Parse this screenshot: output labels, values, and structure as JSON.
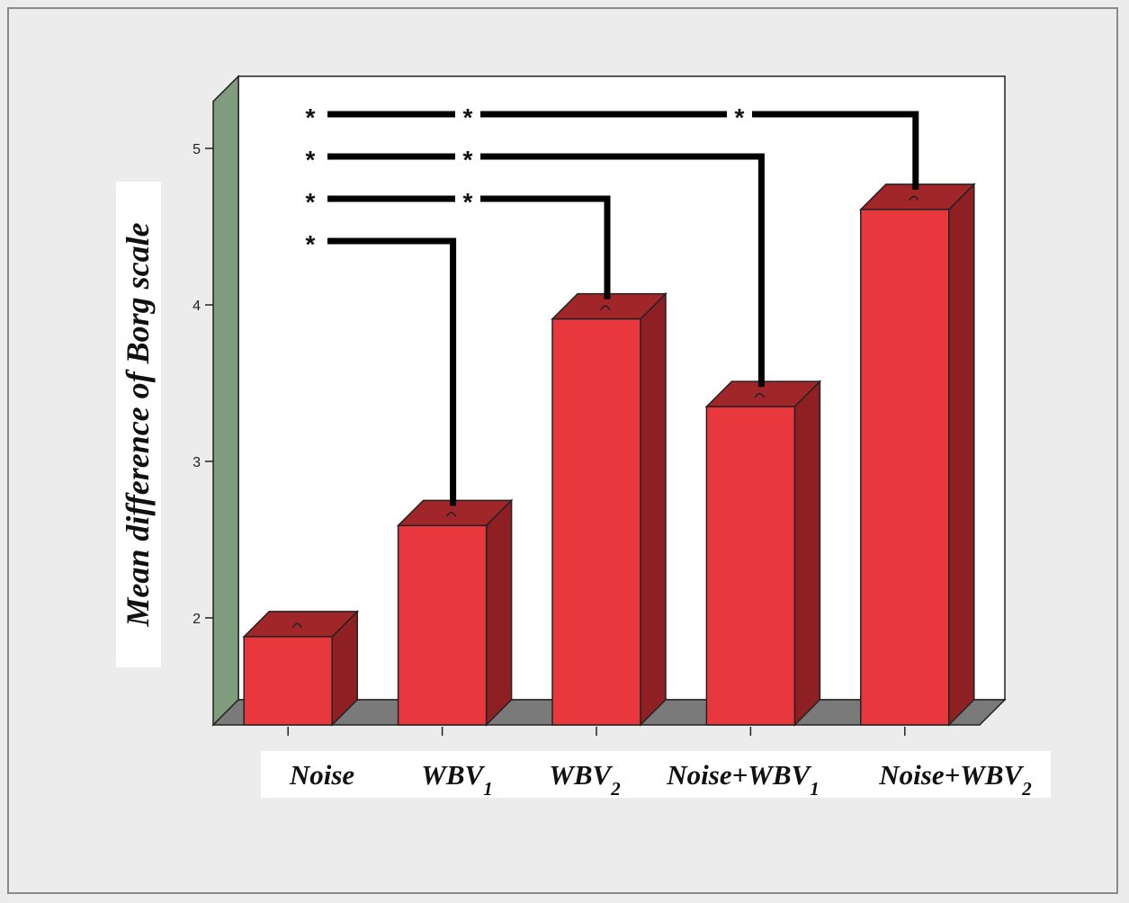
{
  "chart_data": {
    "type": "bar",
    "ylabel": "Mean difference of Borg scale",
    "xlabel": "",
    "ylim": [
      1.45,
      5.3
    ],
    "yticks": [
      2,
      3,
      4,
      5
    ],
    "categories": [
      {
        "base": "Noise",
        "sub": ""
      },
      {
        "base": "WBV",
        "sub": "1"
      },
      {
        "base": "WBV",
        "sub": "2"
      },
      {
        "base": "Noise+WBV",
        "sub": "1"
      },
      {
        "base": "Noise+WBV",
        "sub": "2"
      }
    ],
    "values": [
      1.88,
      2.59,
      3.91,
      3.35,
      4.61
    ],
    "significance": [
      {
        "marker": "*",
        "from": 0,
        "to": [
          4
        ],
        "stars_at": [
          0,
          1,
          3
        ]
      },
      {
        "marker": "*",
        "from": 0,
        "to": [
          3
        ],
        "stars_at": [
          0,
          1
        ]
      },
      {
        "marker": "*",
        "from": 0,
        "to": [
          2
        ],
        "stars_at": [
          0,
          1
        ]
      },
      {
        "marker": "*",
        "from": 0,
        "to": [
          1
        ],
        "stars_at": [
          0
        ]
      }
    ],
    "colors": {
      "bar_front": "#e8383e",
      "bar_top": "#a1262a",
      "bar_side": "#8e1f23",
      "back_wall": "#ffffff",
      "left_wall": "#7f9c7d",
      "floor": "#7a7a7a",
      "background": "#ececec"
    }
  }
}
